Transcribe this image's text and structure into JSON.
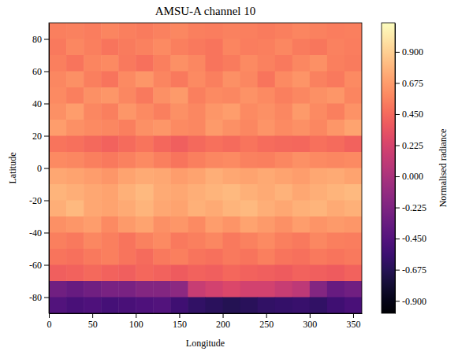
{
  "chart_data": {
    "type": "heatmap",
    "title": "AMSU-A channel 10",
    "x_label": "Longitude",
    "y_label": "Latitude",
    "color": "magma",
    "colorbar_label": "Normalised radiance",
    "x": [
      10,
      30,
      50,
      70,
      90,
      110,
      130,
      150,
      170,
      190,
      210,
      230,
      250,
      270,
      290,
      310,
      330,
      350
    ],
    "y": [
      85,
      75,
      65,
      55,
      45,
      35,
      25,
      15,
      5,
      -5,
      -15,
      -25,
      -35,
      -45,
      -55,
      -65,
      -75,
      -85
    ],
    "z": [
      [
        0.55,
        0.56,
        0.54,
        0.57,
        0.55,
        0.53,
        0.56,
        0.58,
        0.55,
        0.54,
        0.56,
        0.55,
        0.53,
        0.55,
        0.57,
        0.56,
        0.54,
        0.55
      ],
      [
        0.52,
        0.58,
        0.55,
        0.5,
        0.53,
        0.56,
        0.6,
        0.55,
        0.52,
        0.5,
        0.57,
        0.54,
        0.55,
        0.58,
        0.53,
        0.51,
        0.56,
        0.54
      ],
      [
        0.55,
        0.5,
        0.57,
        0.6,
        0.52,
        0.48,
        0.55,
        0.62,
        0.58,
        0.5,
        0.53,
        0.6,
        0.56,
        0.52,
        0.58,
        0.62,
        0.55,
        0.53
      ],
      [
        0.58,
        0.62,
        0.55,
        0.5,
        0.6,
        0.65,
        0.57,
        0.52,
        0.6,
        0.55,
        0.62,
        0.58,
        0.5,
        0.6,
        0.64,
        0.56,
        0.52,
        0.6
      ],
      [
        0.6,
        0.55,
        0.62,
        0.65,
        0.58,
        0.52,
        0.62,
        0.66,
        0.55,
        0.6,
        0.58,
        0.63,
        0.6,
        0.55,
        0.58,
        0.62,
        0.65,
        0.57
      ],
      [
        0.62,
        0.68,
        0.58,
        0.55,
        0.65,
        0.6,
        0.55,
        0.62,
        0.58,
        0.65,
        0.68,
        0.6,
        0.62,
        0.58,
        0.66,
        0.6,
        0.55,
        0.63
      ],
      [
        0.68,
        0.62,
        0.6,
        0.58,
        0.55,
        0.62,
        0.65,
        0.6,
        0.58,
        0.66,
        0.62,
        0.58,
        0.64,
        0.6,
        0.62,
        0.58,
        0.65,
        0.7
      ],
      [
        0.5,
        0.48,
        0.45,
        0.42,
        0.46,
        0.5,
        0.44,
        0.4,
        0.45,
        0.48,
        0.46,
        0.5,
        0.47,
        0.45,
        0.44,
        0.48,
        0.46,
        0.42
      ],
      [
        0.6,
        0.58,
        0.55,
        0.52,
        0.56,
        0.6,
        0.55,
        0.5,
        0.55,
        0.58,
        0.6,
        0.56,
        0.55,
        0.58,
        0.62,
        0.6,
        0.58,
        0.6
      ],
      [
        0.72,
        0.7,
        0.68,
        0.65,
        0.7,
        0.74,
        0.72,
        0.68,
        0.7,
        0.75,
        0.72,
        0.7,
        0.73,
        0.7,
        0.68,
        0.72,
        0.74,
        0.7
      ],
      [
        0.78,
        0.75,
        0.72,
        0.7,
        0.76,
        0.8,
        0.74,
        0.72,
        0.75,
        0.78,
        0.8,
        0.76,
        0.74,
        0.77,
        0.72,
        0.75,
        0.78,
        0.8
      ],
      [
        0.75,
        0.8,
        0.72,
        0.7,
        0.74,
        0.78,
        0.72,
        0.7,
        0.76,
        0.74,
        0.78,
        0.8,
        0.75,
        0.72,
        0.76,
        0.78,
        0.74,
        0.76
      ],
      [
        0.62,
        0.65,
        0.68,
        0.6,
        0.66,
        0.7,
        0.62,
        0.65,
        0.6,
        0.68,
        0.64,
        0.7,
        0.66,
        0.62,
        0.68,
        0.64,
        0.66,
        0.65
      ],
      [
        0.55,
        0.52,
        0.58,
        0.55,
        0.5,
        0.56,
        0.6,
        0.52,
        0.55,
        0.58,
        0.52,
        0.56,
        0.6,
        0.55,
        0.52,
        0.58,
        0.55,
        0.54
      ],
      [
        0.5,
        0.48,
        0.52,
        0.55,
        0.5,
        0.46,
        0.52,
        0.55,
        0.5,
        0.48,
        0.52,
        0.5,
        0.55,
        0.5,
        0.48,
        0.52,
        0.5,
        0.52
      ],
      [
        0.4,
        0.42,
        0.45,
        0.42,
        0.4,
        0.44,
        0.42,
        0.38,
        0.42,
        0.4,
        0.44,
        0.42,
        0.4,
        0.38,
        0.42,
        0.4,
        0.38,
        0.42
      ],
      [
        -0.3,
        -0.35,
        -0.3,
        -0.25,
        -0.25,
        -0.2,
        -0.2,
        -0.15,
        0.15,
        0.2,
        0.25,
        0.2,
        0.2,
        0.15,
        0.1,
        -0.2,
        -0.35,
        -0.3
      ],
      [
        -0.45,
        -0.5,
        -0.48,
        -0.52,
        -0.5,
        -0.48,
        -0.45,
        -0.55,
        -0.62,
        -0.65,
        -0.68,
        -0.66,
        -0.62,
        -0.6,
        -0.58,
        -0.62,
        -0.55,
        -0.5
      ]
    ],
    "xlim": [
      0,
      360
    ],
    "ylim": [
      -90,
      90
    ],
    "xticks": [
      0,
      50,
      100,
      150,
      200,
      250,
      300,
      350
    ],
    "yticks": [
      -80,
      -60,
      -40,
      -20,
      0,
      20,
      40,
      60,
      80
    ],
    "clim": [
      -0.99,
      1.11
    ],
    "cticks": [
      {
        "value": -0.9,
        "label": "-0.900"
      },
      {
        "value": -0.675,
        "label": "-0.675"
      },
      {
        "value": -0.45,
        "label": "-0.450"
      },
      {
        "value": -0.225,
        "label": "-0.225"
      },
      {
        "value": 0,
        "label": "0.000"
      },
      {
        "value": 0.225,
        "label": "0.225"
      },
      {
        "value": 0.45,
        "label": "0.450"
      },
      {
        "value": 0.675,
        "label": "0.675"
      },
      {
        "value": 0.9,
        "label": "0.900"
      }
    ]
  }
}
